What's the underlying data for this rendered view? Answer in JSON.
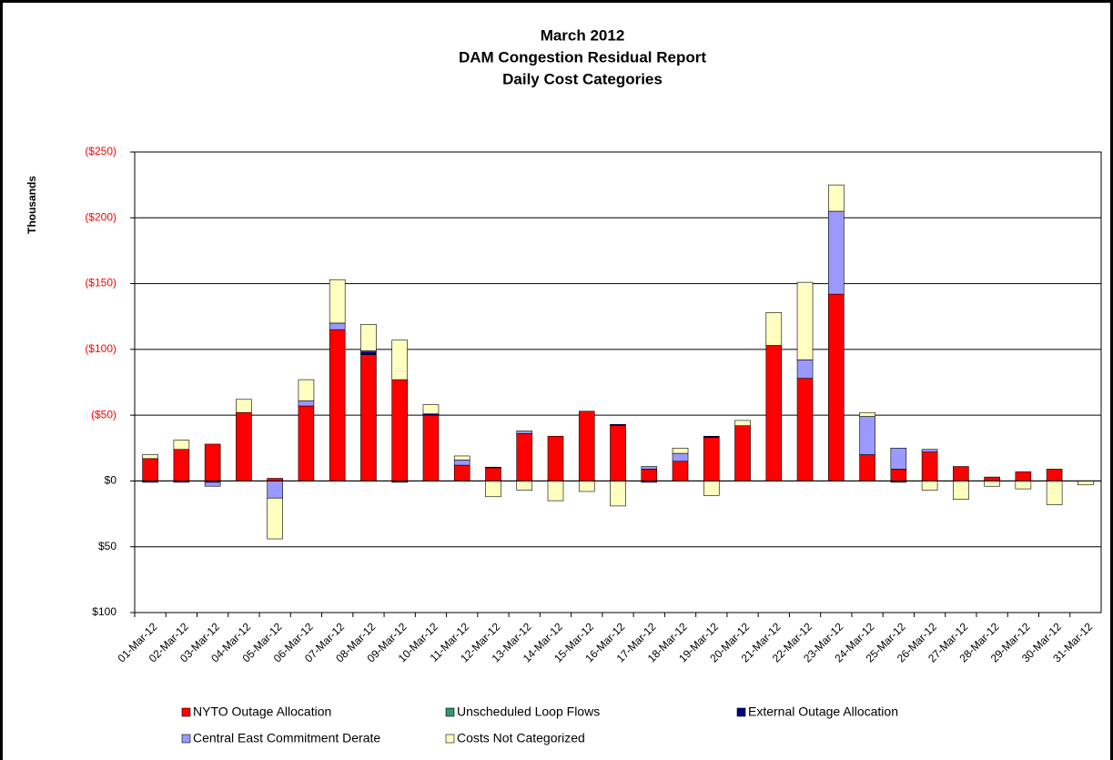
{
  "chart_data": {
    "type": "stacked_bar",
    "title": [
      "March 2012",
      "DAM Congestion Residual Report",
      "Daily Cost Categories"
    ],
    "ylabel": "Thousands",
    "categories": [
      "01-Mar-12",
      "02-Mar-12",
      "03-Mar-12",
      "04-Mar-12",
      "05-Mar-12",
      "06-Mar-12",
      "07-Mar-12",
      "08-Mar-12",
      "09-Mar-12",
      "10-Mar-12",
      "11-Mar-12",
      "12-Mar-12",
      "13-Mar-12",
      "14-Mar-12",
      "15-Mar-12",
      "16-Mar-12",
      "17-Mar-12",
      "18-Mar-12",
      "19-Mar-12",
      "20-Mar-12",
      "21-Mar-12",
      "22-Mar-12",
      "23-Mar-12",
      "24-Mar-12",
      "25-Mar-12",
      "26-Mar-12",
      "27-Mar-12",
      "28-Mar-12",
      "29-Mar-12",
      "30-Mar-12",
      "31-Mar-12"
    ],
    "series": [
      {
        "name": "NYTO Outage Allocation",
        "color": "#ff0000",
        "values": [
          17,
          24,
          28,
          52,
          2,
          57,
          115,
          96,
          77,
          50,
          12,
          10,
          36,
          34,
          53,
          42,
          9,
          15,
          33,
          42,
          103,
          78,
          142,
          20,
          9,
          22,
          11,
          3,
          7,
          9,
          0
        ]
      },
      {
        "name": "Unscheduled Loop Flows",
        "color": "#339966",
        "values": [
          0,
          0,
          0,
          0,
          0,
          0,
          0,
          0,
          0,
          0,
          0,
          0,
          0,
          0,
          0,
          0,
          0,
          0,
          0,
          0,
          0,
          0,
          0,
          0,
          0,
          0,
          0,
          0,
          0,
          0,
          0
        ]
      },
      {
        "name": "External Outage Allocation",
        "color": "#000080",
        "values": [
          -1,
          -1,
          -1,
          0,
          0,
          0,
          0,
          2,
          -1,
          1,
          0,
          0.5,
          0,
          0,
          0,
          1,
          -1,
          0,
          1,
          0,
          0,
          0,
          0,
          0,
          -1,
          0,
          0,
          0,
          0,
          0,
          0
        ]
      },
      {
        "name": "Central East Commitment Derate",
        "color": "#9999ff",
        "values": [
          0,
          0,
          -3,
          0,
          -13,
          4,
          5,
          1,
          0,
          0,
          4,
          0,
          2,
          0,
          0,
          0,
          2,
          6,
          0,
          0,
          0,
          14,
          63,
          29,
          16,
          2,
          0,
          0,
          0,
          0,
          0
        ]
      },
      {
        "name": "Costs Not Categorized",
        "color": "#ffffc0",
        "values": [
          3,
          7,
          0,
          10,
          -31,
          16,
          33,
          20,
          30,
          7,
          3,
          -12,
          -7,
          -15,
          -8,
          -19,
          0,
          4,
          -11,
          4,
          25,
          59,
          20,
          3,
          0,
          -7,
          -14,
          -4,
          -6,
          -18,
          -3
        ]
      }
    ],
    "ylim": [
      -100,
      250
    ],
    "yticks": [
      {
        "value": -100,
        "label": "$100"
      },
      {
        "value": -50,
        "label": "$50"
      },
      {
        "value": 0,
        "label": "$0"
      },
      {
        "value": 50,
        "label": "($50)"
      },
      {
        "value": 100,
        "label": "($100)"
      },
      {
        "value": 150,
        "label": "($150)"
      },
      {
        "value": 200,
        "label": "($200)"
      },
      {
        "value": 250,
        "label": "($250)"
      }
    ],
    "ytick_colors": {
      "above_zero": "#ff0000",
      "other": "#000000"
    },
    "grid": true
  }
}
